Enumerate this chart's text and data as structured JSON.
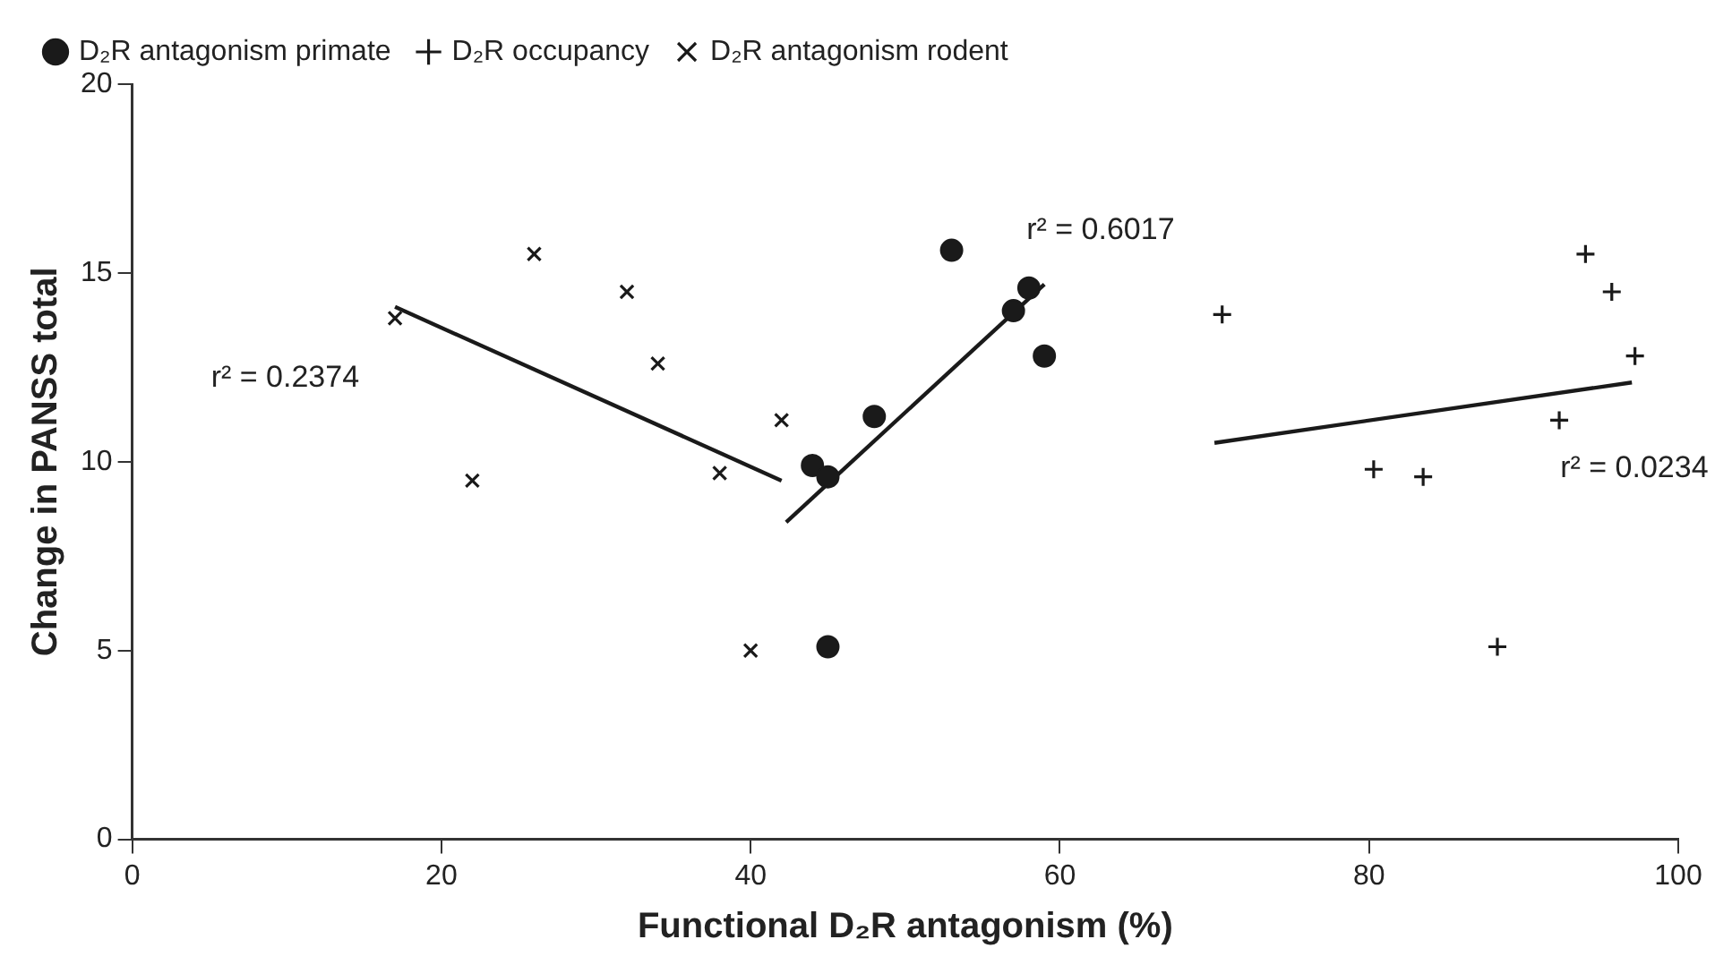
{
  "chart_data": {
    "type": "scatter",
    "xlabel": "Functional D₂R antagonism (%)",
    "ylabel": "Change in PANSS total",
    "xlim": [
      0,
      100
    ],
    "xticks": [
      0,
      20,
      40,
      60,
      80,
      100
    ],
    "ylim": [
      0,
      20
    ],
    "yticks": [
      0,
      5,
      10,
      15,
      20
    ],
    "grid": false,
    "legend": "top left",
    "series": [
      {
        "name": "D₂R antagonism primate",
        "color": "#1a1a1a",
        "marker": "circle",
        "x": [
          44,
          45,
          45,
          48,
          53,
          57,
          58,
          59
        ],
        "values": [
          9.9,
          9.6,
          5.1,
          11.2,
          15.6,
          14.0,
          14.6,
          12.8
        ]
      },
      {
        "name": "D₂R occupancy",
        "color": "#1a1a1a",
        "marker": "cross",
        "x": [
          70.5,
          80.3,
          83.5,
          88.3,
          92.3,
          94,
          95.7,
          97.2
        ],
        "values": [
          13.9,
          9.8,
          9.6,
          5.1,
          11.1,
          15.5,
          14.5,
          12.8
        ]
      },
      {
        "name": "D₂R antagonism rodent",
        "color": "#1a1a1a",
        "marker": "x",
        "x": [
          17,
          22,
          26,
          32,
          34,
          38,
          40,
          42
        ],
        "values": [
          13.8,
          9.5,
          15.5,
          14.5,
          12.6,
          9.7,
          5.0,
          11.1
        ]
      },
      {
        "type": "line",
        "color": "#1a1a1a",
        "marker": "none",
        "x": [
          17,
          42
        ],
        "values": [
          14.1,
          9.5
        ]
      },
      {
        "type": "line",
        "color": "#1a1a1a",
        "marker": "none",
        "x": [
          42.3,
          59
        ],
        "values": [
          8.4,
          14.7
        ]
      },
      {
        "type": "line",
        "color": "#1a1a1a",
        "marker": "none",
        "x": [
          70,
          97
        ],
        "values": [
          10.5,
          12.1
        ]
      }
    ],
    "annotations": [
      "r² = 0.2374",
      "r² = 0.6017",
      "r² = 0.0234"
    ]
  }
}
